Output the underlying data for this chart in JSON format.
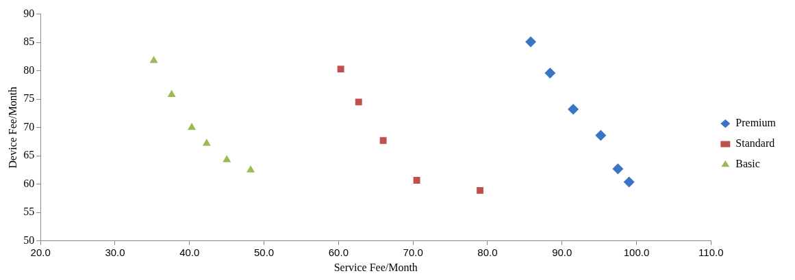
{
  "chart_data": {
    "type": "scatter",
    "xlabel": "Service Fee/Month",
    "ylabel": "Device Fee/Month",
    "xlim": [
      20,
      110
    ],
    "xticks": [
      {
        "value": 20,
        "label": "20.0"
      },
      {
        "value": 30,
        "label": "30.0"
      },
      {
        "value": 40,
        "label": "40.0"
      },
      {
        "value": 50,
        "label": "50.0"
      },
      {
        "value": 60,
        "label": "60.0"
      },
      {
        "value": 70,
        "label": "70.0"
      },
      {
        "value": 80,
        "label": "80.0"
      },
      {
        "value": 90,
        "label": "90.0"
      },
      {
        "value": 100,
        "label": "100.0"
      },
      {
        "value": 110,
        "label": "110.0"
      }
    ],
    "ylim": [
      50,
      90
    ],
    "yticks": [
      50,
      55,
      60,
      65,
      70,
      75,
      80,
      85,
      90
    ],
    "grid": false,
    "legend": "right",
    "series": [
      {
        "name": "Premium",
        "color": "#3a75c4",
        "marker": "diamond",
        "x": [
          85.8,
          88.4,
          91.5,
          95.2,
          97.5,
          99.0
        ],
        "values": [
          85.1,
          79.6,
          73.2,
          68.6,
          62.7,
          60.4
        ]
      },
      {
        "name": "Standard",
        "color": "#c0504d",
        "marker": "square",
        "x": [
          60.3,
          62.7,
          66.0,
          70.5,
          79.0
        ],
        "values": [
          80.3,
          74.5,
          67.7,
          60.7,
          58.9
        ]
      },
      {
        "name": "Basic",
        "color": "#9bbb59",
        "marker": "triangle",
        "x": [
          35.2,
          37.6,
          40.3,
          42.3,
          45.0,
          48.2
        ],
        "values": [
          81.8,
          75.8,
          70.0,
          67.2,
          64.3,
          62.5
        ]
      }
    ]
  }
}
